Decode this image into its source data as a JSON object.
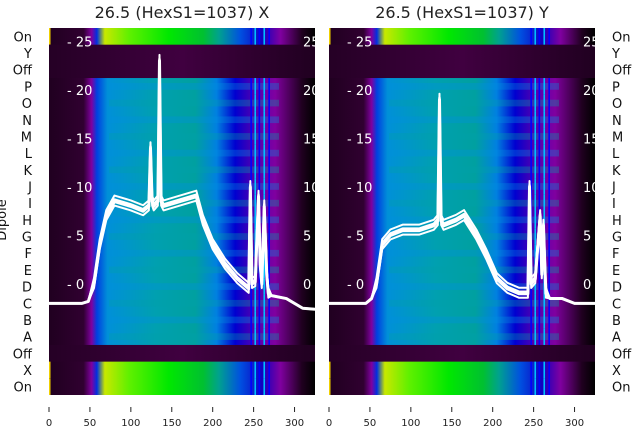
{
  "chart_data": [
    {
      "type": "heatmap",
      "title": "26.5 (HexS1=1037) X",
      "ylabel": "Dipole",
      "rows": [
        "On",
        "Y",
        "Off",
        "P",
        "O",
        "N",
        "M",
        "L",
        "K",
        "J",
        "I",
        "H",
        "G",
        "F",
        "E",
        "D",
        "C",
        "B",
        "A",
        "Off",
        "X",
        "On"
      ],
      "row_kinds": [
        "on",
        "off",
        "off",
        "dip",
        "dip",
        "dip",
        "dip",
        "dip",
        "dip",
        "dip",
        "dip",
        "dip",
        "dip",
        "dip",
        "dip",
        "dip",
        "dip",
        "dip",
        "dip",
        "off",
        "on",
        "on"
      ],
      "xticks": [
        0,
        50,
        100,
        150,
        200,
        250,
        300
      ],
      "xlim": [
        0,
        325
      ],
      "inner_yticks": [
        0,
        5,
        10,
        15,
        20,
        25
      ],
      "inner_ylim": [
        -3.4,
        26.5
      ],
      "line": {
        "x": [
          0,
          40,
          48,
          55,
          62,
          70,
          80,
          100,
          115,
          122,
          124,
          126,
          128,
          133,
          135,
          137,
          140,
          160,
          180,
          188,
          200,
          215,
          230,
          244,
          246,
          248,
          252,
          256,
          258,
          260,
          263,
          266,
          268,
          272,
          290,
          310,
          325
        ],
        "y": [
          -2,
          -2,
          -1.8,
          0,
          4,
          7,
          8.5,
          8,
          7.5,
          8,
          14,
          8.5,
          8,
          8.5,
          23,
          8.5,
          8,
          8.5,
          9,
          6.5,
          4,
          2,
          0.5,
          -0.5,
          10,
          0,
          0.2,
          9,
          2,
          0,
          8,
          1,
          -1,
          -1.2,
          -1.5,
          -2.5,
          -2.6
        ]
      }
    },
    {
      "type": "heatmap",
      "title": "26.5 (HexS1=1037) Y",
      "ylabel": "",
      "rows": [
        "On",
        "Y",
        "Off",
        "P",
        "O",
        "N",
        "M",
        "L",
        "K",
        "J",
        "I",
        "H",
        "G",
        "F",
        "E",
        "D",
        "C",
        "B",
        "A",
        "Off",
        "X",
        "On"
      ],
      "row_kinds": [
        "on",
        "off",
        "off",
        "dip",
        "dip",
        "dip",
        "dip",
        "dip",
        "dip",
        "dip",
        "dip",
        "dip",
        "dip",
        "dip",
        "dip",
        "dip",
        "dip",
        "dip",
        "dip",
        "off",
        "on",
        "on"
      ],
      "xticks": [
        0,
        50,
        100,
        150,
        200,
        250,
        300
      ],
      "xlim": [
        0,
        325
      ],
      "inner_yticks": [
        0,
        5,
        10,
        15,
        20,
        25
      ],
      "inner_ylim": [
        -3.4,
        26.5
      ],
      "line": {
        "x": [
          0,
          45,
          52,
          58,
          65,
          75,
          90,
          110,
          128,
          133,
          135,
          137,
          140,
          155,
          165,
          180,
          192,
          205,
          218,
          232,
          243,
          245,
          247,
          252,
          258,
          260,
          262,
          265,
          270,
          285,
          300,
          325
        ],
        "y": [
          -2,
          -2,
          -1.5,
          0,
          4,
          5,
          5.5,
          5.5,
          6,
          6.5,
          19,
          6.5,
          6,
          6.5,
          7,
          5,
          3,
          0.5,
          -0.5,
          -1,
          -1,
          10,
          0,
          0.5,
          7,
          1,
          6,
          -1,
          -1.5,
          -1.5,
          -2,
          -2
        ]
      }
    }
  ]
}
